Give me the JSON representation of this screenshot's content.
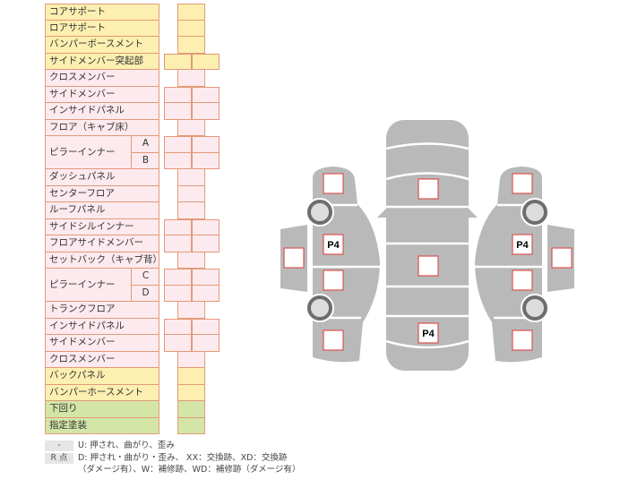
{
  "parts": [
    {
      "label": "コアサポート",
      "color": "yellow",
      "cells": 1
    },
    {
      "label": "ロアサポート",
      "color": "yellow",
      "cells": 1
    },
    {
      "label": "バンパーボースメント",
      "color": "yellow",
      "cells": 1
    },
    {
      "label": "サイドメンバー突起部",
      "color": "yellow",
      "cells": 2
    },
    {
      "label": "クロスメンバー",
      "color": "pink",
      "cells": 1
    },
    {
      "label": "サイドメンバー",
      "color": "pink",
      "cells": 2
    },
    {
      "label": "インサイドパネル",
      "color": "pink",
      "cells": 2
    },
    {
      "label": "フロア（キャブ床）",
      "color": "pink",
      "cells": 1
    },
    {
      "label": "ピラーインナー",
      "sub": [
        "A",
        "B"
      ],
      "color": "pink",
      "cells": 2
    },
    {
      "label": "ダッシュパネル",
      "color": "pink",
      "cells": 1
    },
    {
      "label": "センターフロア",
      "color": "pink",
      "cells": 1
    },
    {
      "label": "ルーフパネル",
      "color": "pink",
      "cells": 1
    },
    {
      "label": "サイドシルインナー",
      "color": "pink",
      "cells": 2
    },
    {
      "label": "フロアサイドメンバー",
      "color": "pink",
      "cells": 2
    },
    {
      "label": "セットバック（キャブ背）",
      "color": "pink",
      "cells": 1
    },
    {
      "label": "ピラーインナー",
      "sub": [
        "C",
        "D"
      ],
      "color": "pink",
      "cells": 2
    },
    {
      "label": "トランクフロア",
      "color": "pink",
      "cells": 1
    },
    {
      "label": "インサイドパネル",
      "color": "pink",
      "cells": 2
    },
    {
      "label": "サイドメンバー",
      "color": "pink",
      "cells": 2
    },
    {
      "label": "クロスメンバー",
      "color": "pink",
      "cells": 1
    },
    {
      "label": "バックパネル",
      "color": "yellow",
      "cells": 1
    },
    {
      "label": "バンパーホースメント",
      "color": "yellow",
      "cells": 1
    },
    {
      "label": "下回り",
      "color": "green",
      "cells": 1
    },
    {
      "label": "指定塗装",
      "color": "green",
      "cells": 1
    }
  ],
  "colors": {
    "yellow": "#fcefb0",
    "pink": "#fdeaee",
    "green": "#d3e6a8",
    "border": "#e29a78",
    "car": "#b9b9b9",
    "marker": "#d9534f"
  },
  "diagram": {
    "markers": [
      "",
      "",
      "",
      "",
      "",
      "P4",
      "",
      "",
      "",
      "",
      "P4",
      "",
      "",
      "",
      "P4",
      "",
      ""
    ]
  },
  "legend": {
    "chip1": "-",
    "line1": "U: 押され、曲がり、歪み",
    "chip2": "R 点",
    "line2": "D: 押され・曲がり・歪み、 XX：交換跡、XD：交換跡",
    "line3": "（ダメージ有）、W：補修跡、WD：補修跡（ダメージ有）"
  }
}
